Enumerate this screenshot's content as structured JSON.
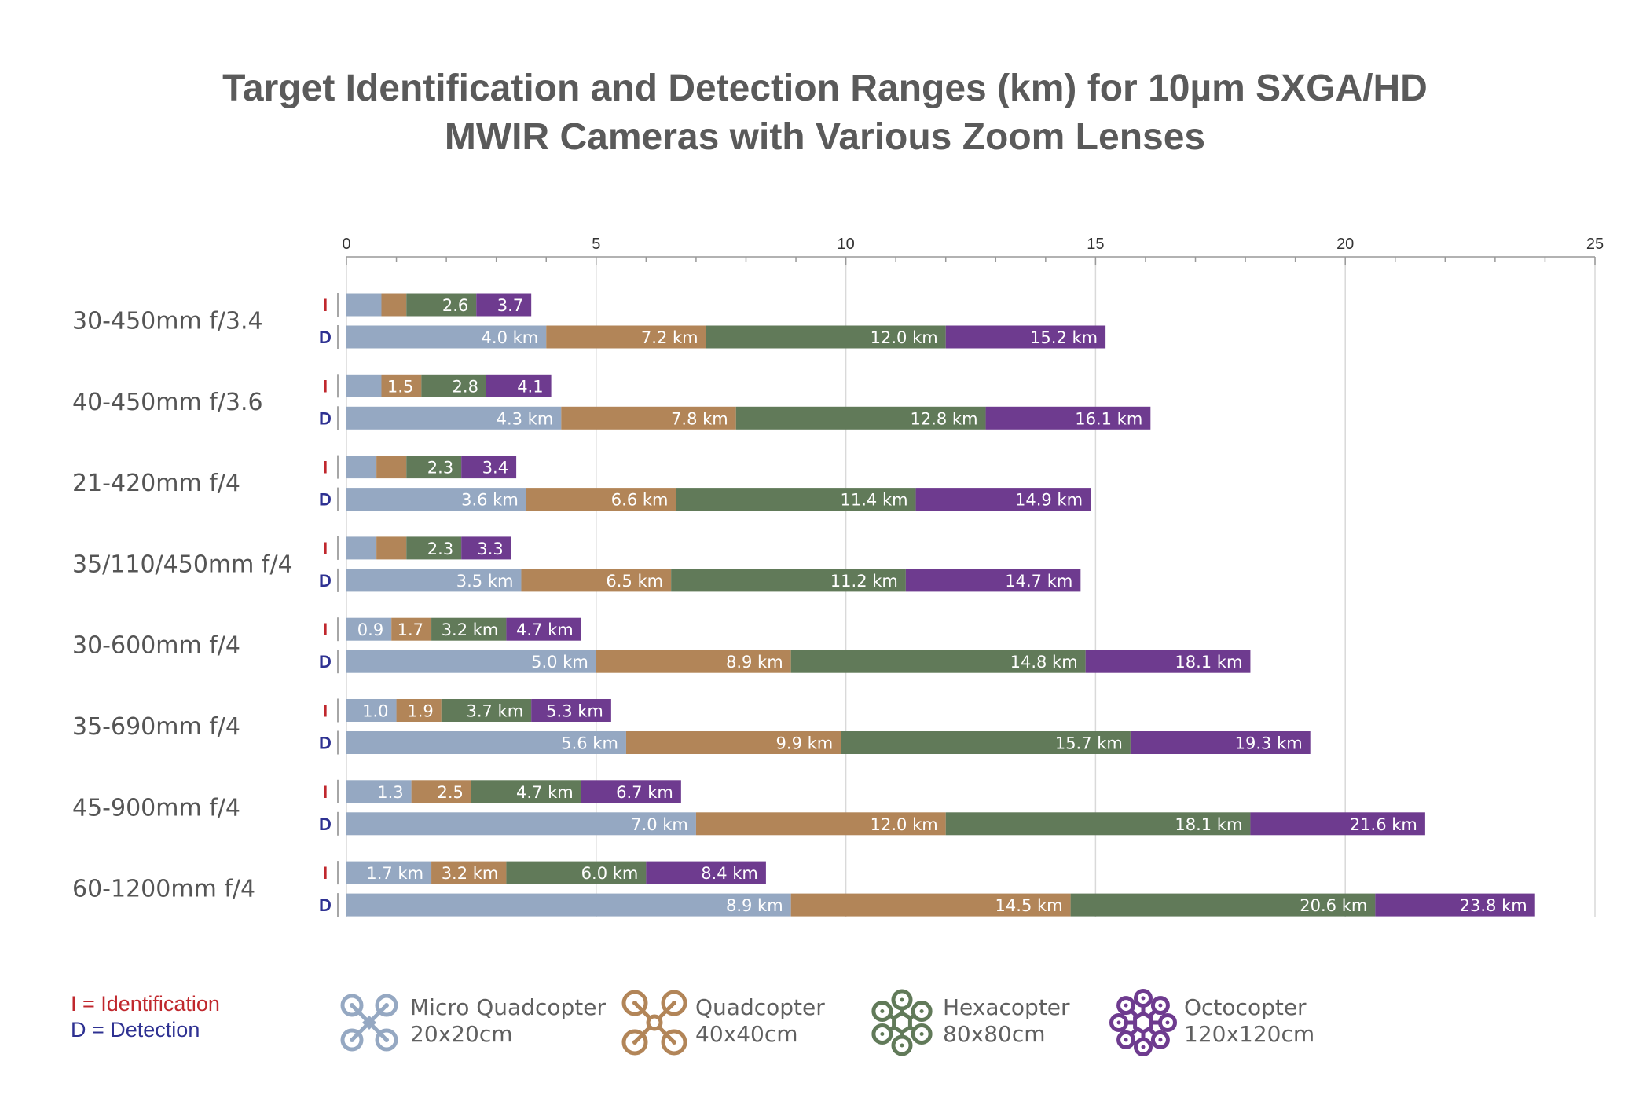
{
  "chart_data": {
    "type": "bar",
    "orientation": "horizontal",
    "stacking": "overlapping-cumulative",
    "title": [
      "Target Identification and Detection Ranges (km) for 10µm SXGA/HD",
      "MWIR Cameras with Various Zoom Lenses"
    ],
    "xlim": [
      0,
      25
    ],
    "xticks": [
      0,
      5,
      10,
      15,
      20,
      25
    ],
    "xtick_labels": [
      "0",
      "5",
      "10",
      "15",
      "20",
      "25"
    ],
    "minor_tick_step": 1,
    "grid": true,
    "row_codes": {
      "I": "I",
      "D": "D"
    },
    "row_code_colors": {
      "I": "#c0272d",
      "D": "#2e3192"
    },
    "series": [
      {
        "name": "Micro Quadcopter",
        "size": "20x20cm",
        "color": "#95a8c2"
      },
      {
        "name": "Quadcopter",
        "size": "40x40cm",
        "color": "#b28558"
      },
      {
        "name": "Hexacopter",
        "size": "80x80cm",
        "color": "#617a59"
      },
      {
        "name": "Octocopter",
        "size": "120x120cm",
        "color": "#6e3b8f"
      }
    ],
    "groups": [
      {
        "lens": "30-450mm f/3.4",
        "identification": {
          "values": [
            0.7,
            1.2,
            2.6,
            3.7
          ],
          "labels": [
            "",
            "",
            "2.6",
            "3.7"
          ]
        },
        "detection": {
          "values": [
            4.0,
            7.2,
            12.0,
            15.2
          ],
          "labels": [
            "4.0 km",
            "7.2 km",
            "12.0 km",
            "15.2 km"
          ]
        }
      },
      {
        "lens": "40-450mm f/3.6",
        "identification": {
          "values": [
            0.7,
            1.5,
            2.8,
            4.1
          ],
          "labels": [
            "",
            "1.5",
            "2.8",
            "4.1"
          ]
        },
        "detection": {
          "values": [
            4.3,
            7.8,
            12.8,
            16.1
          ],
          "labels": [
            "4.3 km",
            "7.8 km",
            "12.8 km",
            "16.1 km"
          ]
        }
      },
      {
        "lens": "21-420mm f/4",
        "identification": {
          "values": [
            0.6,
            1.2,
            2.3,
            3.4
          ],
          "labels": [
            "",
            "",
            "2.3",
            "3.4"
          ]
        },
        "detection": {
          "values": [
            3.6,
            6.6,
            11.4,
            14.9
          ],
          "labels": [
            "3.6 km",
            "6.6 km",
            "11.4 km",
            "14.9 km"
          ]
        }
      },
      {
        "lens": "35/110/450mm f/4",
        "identification": {
          "values": [
            0.6,
            1.2,
            2.3,
            3.3
          ],
          "labels": [
            "",
            "",
            "2.3",
            "3.3"
          ]
        },
        "detection": {
          "values": [
            3.5,
            6.5,
            11.2,
            14.7
          ],
          "labels": [
            "3.5 km",
            "6.5 km",
            "11.2 km",
            "14.7 km"
          ]
        }
      },
      {
        "lens": "30-600mm f/4",
        "identification": {
          "values": [
            0.9,
            1.7,
            3.2,
            4.7
          ],
          "labels": [
            "0.9",
            "1.7",
            "3.2 km",
            "4.7 km"
          ]
        },
        "detection": {
          "values": [
            5.0,
            8.9,
            14.8,
            18.1
          ],
          "labels": [
            "5.0 km",
            "8.9 km",
            "14.8 km",
            "18.1 km"
          ]
        }
      },
      {
        "lens": "35-690mm f/4",
        "identification": {
          "values": [
            1.0,
            1.9,
            3.7,
            5.3
          ],
          "labels": [
            "1.0",
            "1.9",
            "3.7 km",
            "5.3 km"
          ]
        },
        "detection": {
          "values": [
            5.6,
            9.9,
            15.7,
            19.3
          ],
          "labels": [
            "5.6 km",
            "9.9 km",
            "15.7 km",
            "19.3 km"
          ]
        }
      },
      {
        "lens": "45-900mm f/4",
        "identification": {
          "values": [
            1.3,
            2.5,
            4.7,
            6.7
          ],
          "labels": [
            "1.3",
            "2.5",
            "4.7 km",
            "6.7 km"
          ]
        },
        "detection": {
          "values": [
            7.0,
            12.0,
            18.1,
            21.6
          ],
          "labels": [
            "7.0 km",
            "12.0 km",
            "18.1 km",
            "21.6 km"
          ]
        }
      },
      {
        "lens": "60-1200mm f/4",
        "identification": {
          "values": [
            1.7,
            3.2,
            6.0,
            8.4
          ],
          "labels": [
            "1.7 km",
            "3.2 km",
            "6.0 km",
            "8.4 km"
          ]
        },
        "detection": {
          "values": [
            8.9,
            14.5,
            20.6,
            23.8
          ],
          "labels": [
            "8.9 km",
            "14.5 km",
            "20.6 km",
            "23.8 km"
          ]
        }
      }
    ]
  },
  "key": {
    "identification": "I = Identification",
    "detection": "D = Detection"
  },
  "legend_icons": [
    "micro-quadcopter-icon",
    "quadcopter-icon",
    "hexacopter-icon",
    "octocopter-icon"
  ]
}
